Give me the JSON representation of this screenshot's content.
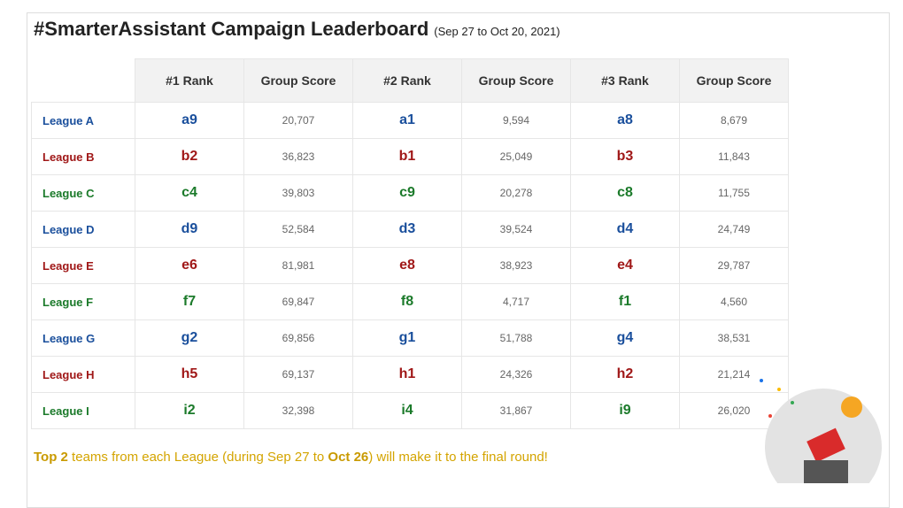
{
  "title": "#SmarterAssistant Campaign Leaderboard",
  "subtitle": "(Sep 27 to Oct 20, 2021)",
  "table": {
    "header": [
      "#1 Rank",
      "Group Score",
      "#2 Rank",
      "Group Score",
      "#3 Rank",
      "Group Score"
    ],
    "rows": [
      [
        "League A",
        "a9",
        "20,707",
        "a1",
        "9,594",
        "a8",
        "8,679"
      ],
      [
        "League B",
        "b2",
        "36,823",
        "b1",
        "25,049",
        "b3",
        "11,843"
      ],
      [
        "League C",
        "c4",
        "39,803",
        "c9",
        "20,278",
        "c8",
        "11,755"
      ],
      [
        "League D",
        "d9",
        "52,584",
        "d3",
        "39,524",
        "d4",
        "24,749"
      ],
      [
        "League E",
        "e6",
        "81,981",
        "e8",
        "38,923",
        "e4",
        "29,787"
      ],
      [
        "League F",
        "f7",
        "69,847",
        "f8",
        "4,717",
        "f1",
        "4,560"
      ],
      [
        "League G",
        "g2",
        "69,856",
        "g1",
        "51,788",
        "g4",
        "38,531"
      ],
      [
        "League H",
        "h5",
        "69,137",
        "h1",
        "24,326",
        "h2",
        "21,214"
      ],
      [
        "League I",
        "i2",
        "32,398",
        "i4",
        "31,867",
        "i9",
        "26,020"
      ]
    ]
  },
  "footer": [
    "Top 2",
    " teams from each League (during Sep 27 to ",
    "Oct 26",
    ") will make it to the final round!"
  ]
}
